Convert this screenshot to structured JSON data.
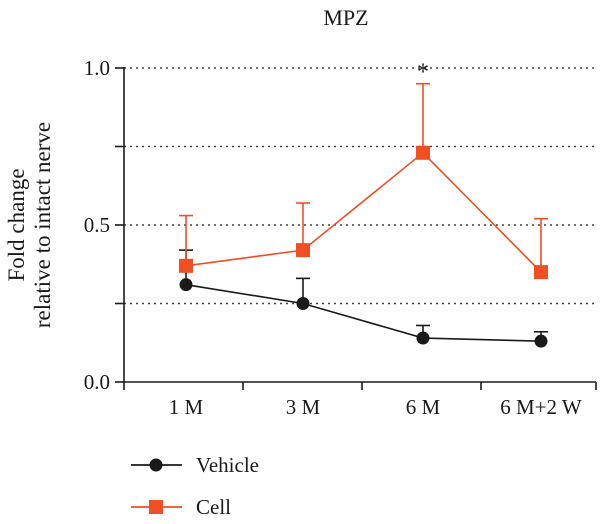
{
  "chart_data": {
    "type": "line",
    "title": "MPZ",
    "ylabel_line1": "Fold change",
    "ylabel_line2": "relative to intact nerve",
    "xlabel": "",
    "categories": [
      "1 M",
      "3 M",
      "6 M",
      "6 M+2 W"
    ],
    "ylim": [
      0,
      1.0
    ],
    "yticks": [
      0.0,
      0.5,
      1.0
    ],
    "ytick_labels": [
      "0.0",
      "0.5",
      "1.0"
    ],
    "grid": "dotted horizontal at 0.25, 0.5, 0.75, 1.0",
    "significance": {
      "category": "6 M",
      "label": "*"
    },
    "legend_position": "bottom-left",
    "series": [
      {
        "name": "Vehicle",
        "marker": "circle",
        "color": "#1a1a1a",
        "values": [
          0.31,
          0.25,
          0.14,
          0.13
        ],
        "errors": [
          0.11,
          0.08,
          0.04,
          0.03
        ]
      },
      {
        "name": "Cell",
        "marker": "square",
        "color": "#f04e23",
        "values": [
          0.37,
          0.42,
          0.73,
          0.35
        ],
        "errors": [
          0.16,
          0.15,
          0.22,
          0.17
        ]
      }
    ]
  }
}
